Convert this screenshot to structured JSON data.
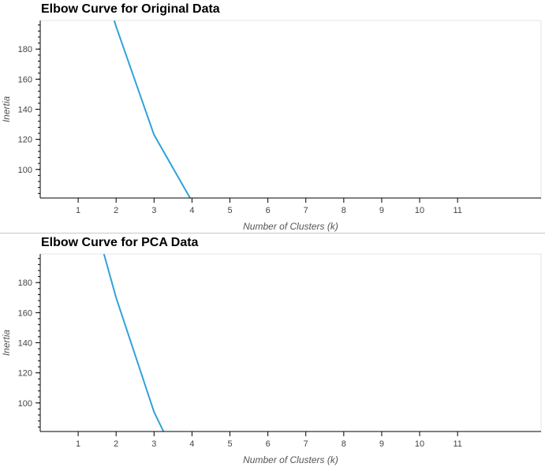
{
  "chart_data": [
    {
      "type": "line",
      "title": "Elbow Curve for Original Data",
      "xlabel": "Number of Clusters (k)",
      "ylabel": "Inertia",
      "x_ticks": [
        "1",
        "2",
        "3",
        "4",
        "5",
        "6",
        "7",
        "8",
        "9",
        "10",
        "11"
      ],
      "y_ticks": [
        "100",
        "120",
        "140",
        "160",
        "180"
      ],
      "xlim": [
        0.0,
        13.2
      ],
      "ylim": [
        81,
        199
      ],
      "grid": false,
      "line_color": "#30a2da",
      "series": [
        {
          "x": [
            1.95,
            2,
            3,
            3.95
          ],
          "y": [
            199,
            195,
            123,
            81
          ]
        }
      ]
    },
    {
      "type": "line",
      "title": "Elbow Curve for PCA Data",
      "xlabel": "Number of Clusters (k)",
      "ylabel": "Inertia",
      "x_ticks": [
        "1",
        "2",
        "3",
        "4",
        "5",
        "6",
        "7",
        "8",
        "9",
        "10",
        "11"
      ],
      "y_ticks": [
        "100",
        "120",
        "140",
        "160",
        "180"
      ],
      "xlim": [
        0.0,
        13.2
      ],
      "ylim": [
        81,
        199
      ],
      "grid": false,
      "line_color": "#30a2da",
      "series": [
        {
          "x": [
            1.68,
            2,
            3,
            3.25
          ],
          "y": [
            199,
            170,
            94,
            81
          ]
        }
      ]
    }
  ]
}
